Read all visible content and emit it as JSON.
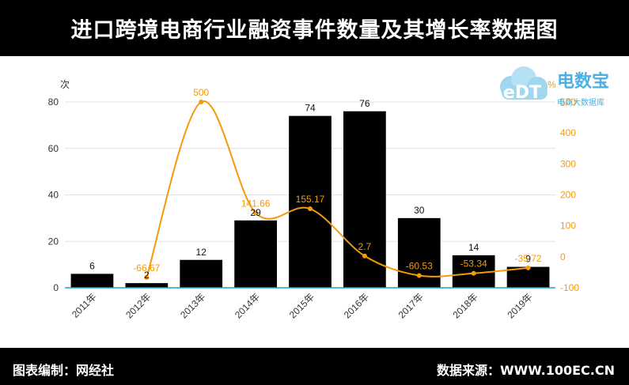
{
  "header": {
    "title": "进口跨境电商行业融资事件数量及其增长率数据图"
  },
  "footer": {
    "left": "图表编制：网经社",
    "right": "数据来源：WWW.100EC.CN"
  },
  "logo": {
    "mark": "eDT",
    "name": "电数宝",
    "tagline": "电商大数据库"
  },
  "colors": {
    "bar": "#000000",
    "line": "#f59a0a",
    "axis": "#1aa0d8"
  },
  "chart_data": {
    "type": "bar",
    "categories": [
      "2011年",
      "2012年",
      "2013年",
      "2014年",
      "2015年",
      "2016年",
      "2017年",
      "2018年",
      "2019年"
    ],
    "series": [
      {
        "type": "bar",
        "axis": "left",
        "values": [
          6,
          2,
          12,
          29,
          74,
          76,
          30,
          14,
          9
        ]
      },
      {
        "type": "line",
        "axis": "right",
        "values": [
          null,
          -66.67,
          500,
          141.66,
          155.17,
          2.7,
          -60.53,
          -53.34,
          -35.72
        ]
      }
    ],
    "bar_labels": [
      "6",
      "2",
      "12",
      "29",
      "74",
      "76",
      "30",
      "14",
      "9"
    ],
    "line_labels": [
      "",
      "-66.67",
      "500",
      "141.66",
      "155.17",
      "2.7",
      "-60.53",
      "-53.34",
      "-35.72"
    ],
    "ylabel": "次",
    "ylabel_right": "%",
    "ylim": [
      0,
      80
    ],
    "yticks": [
      "0",
      "20",
      "40",
      "60",
      "80"
    ],
    "ylim_right": [
      -100,
      500
    ],
    "yticks_right": [
      "-100",
      "0",
      "100",
      "200",
      "300",
      "400",
      "500"
    ],
    "grid": true
  }
}
